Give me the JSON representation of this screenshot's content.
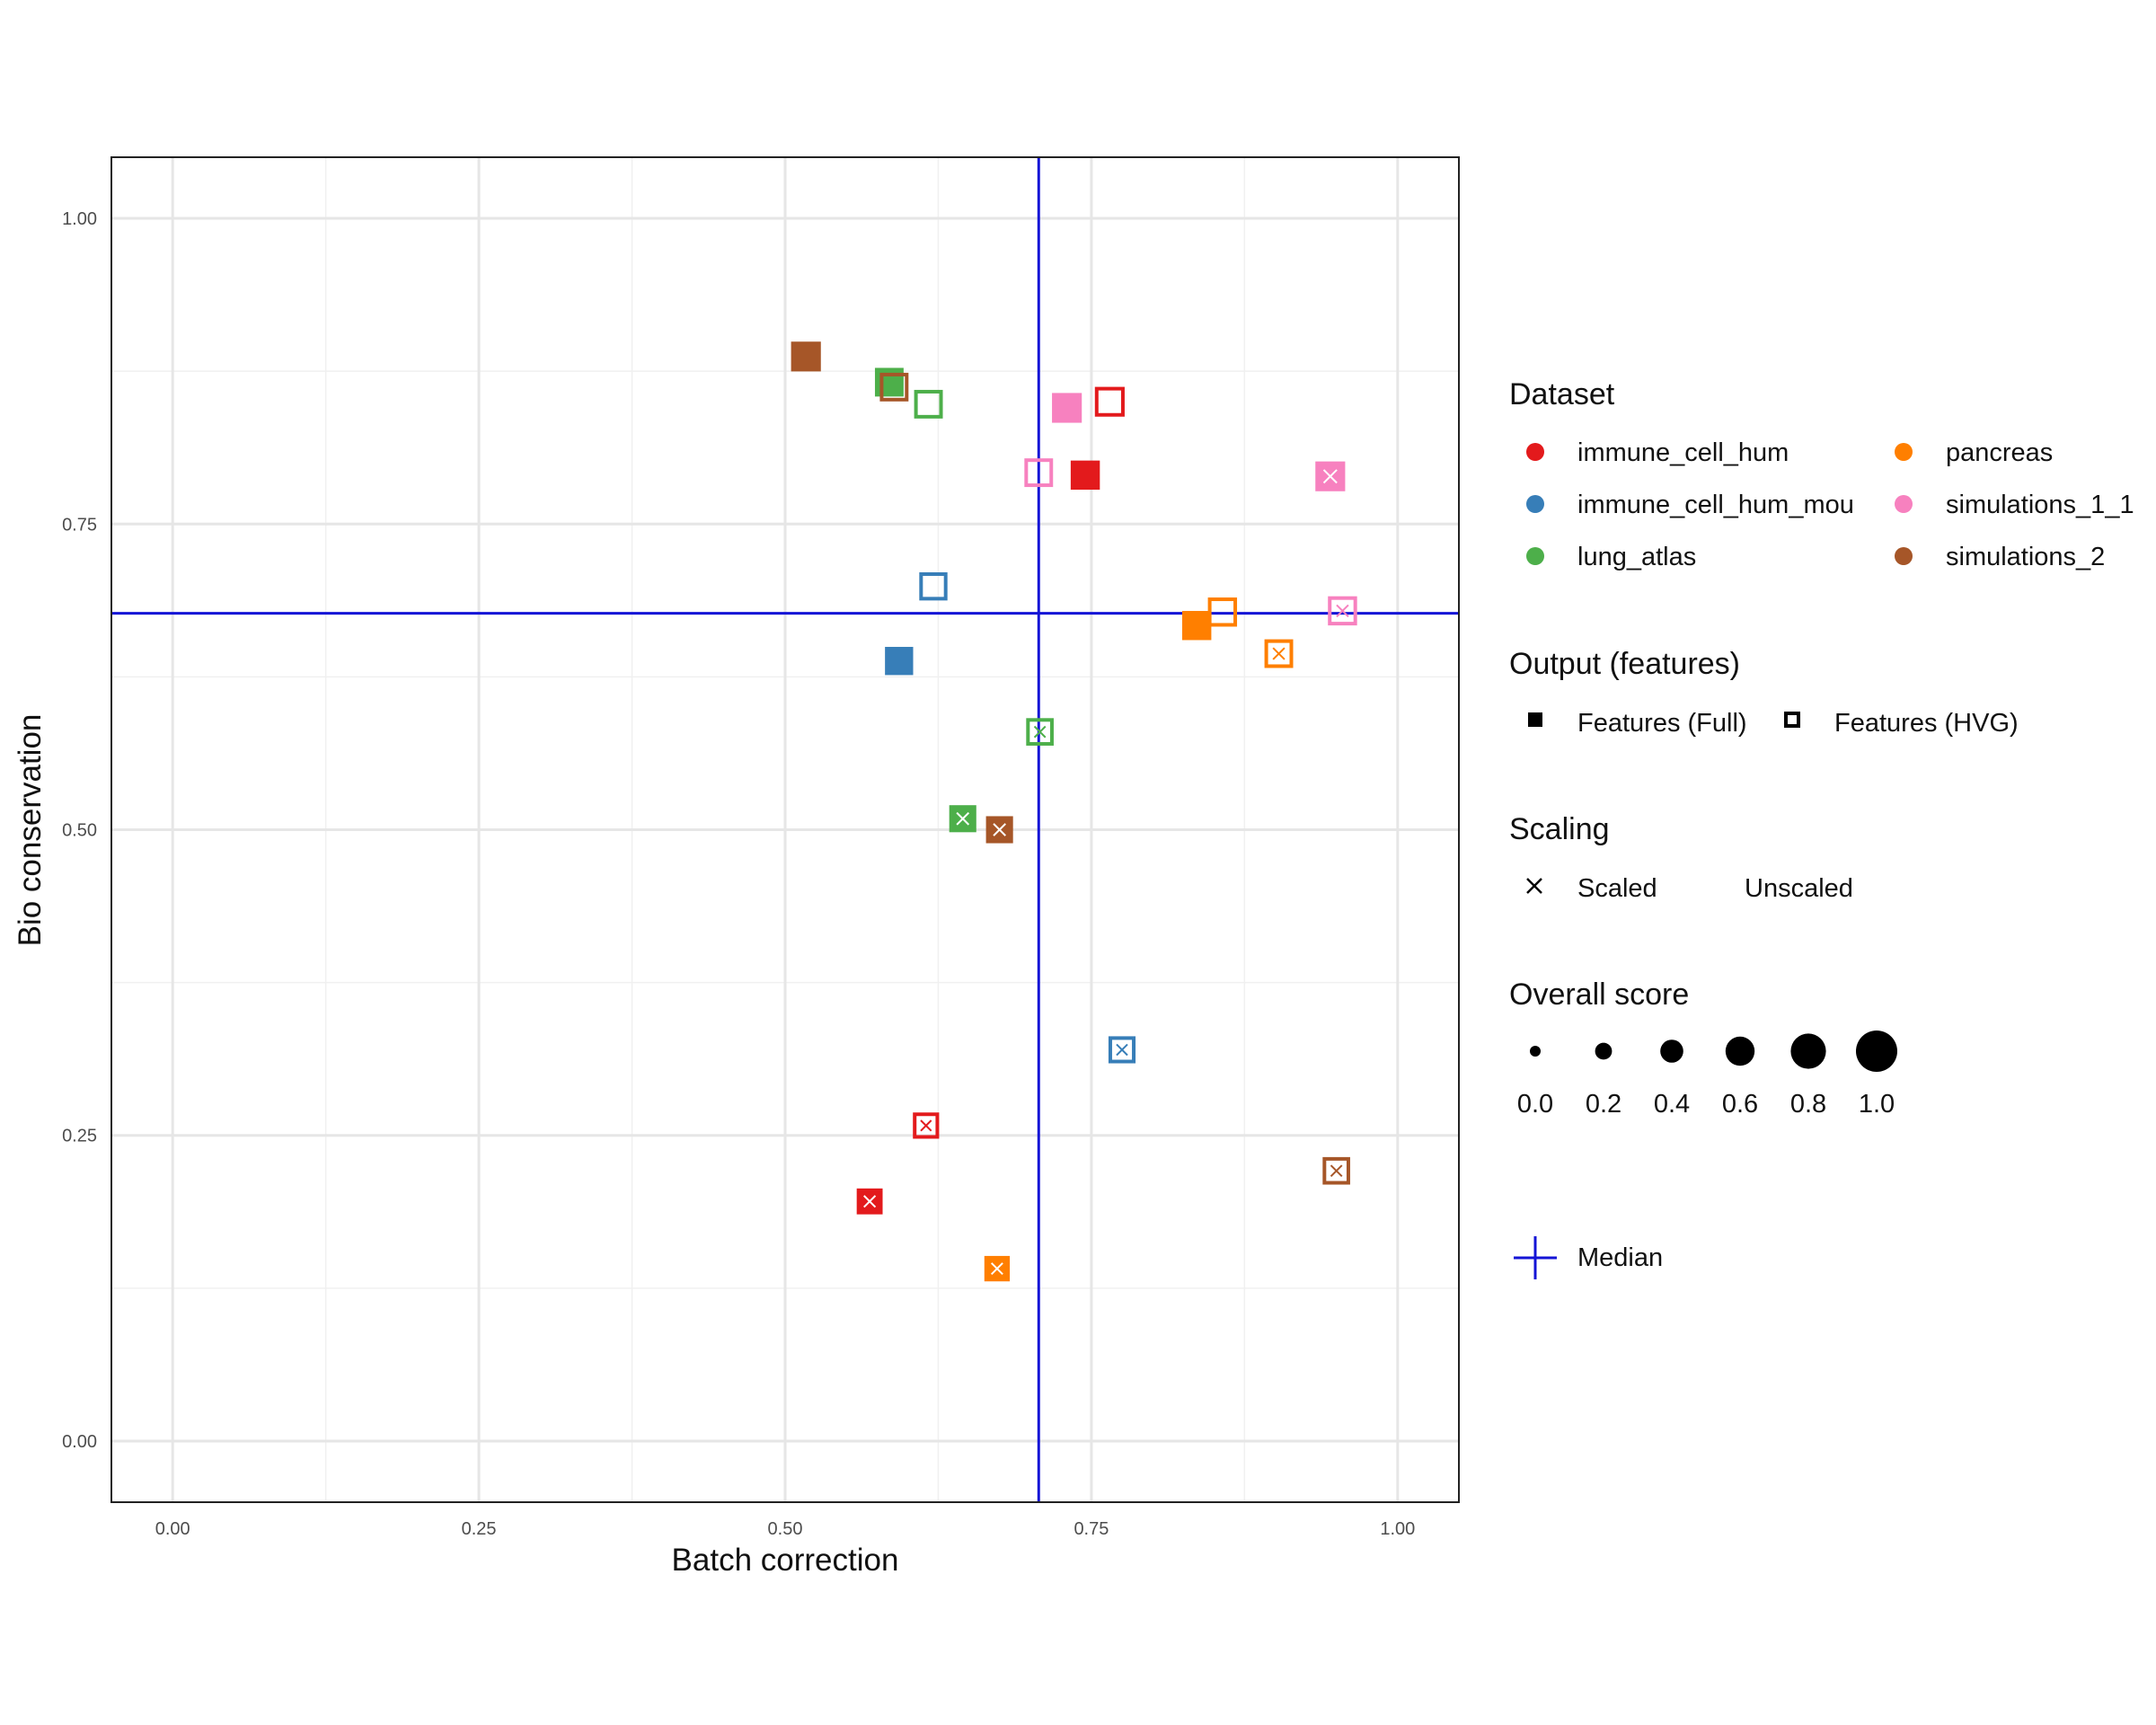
{
  "chart_data": {
    "type": "scatter",
    "xlabel": "Batch correction",
    "ylabel": "Bio conservation",
    "xlim": [
      -0.05,
      1.05
    ],
    "ylim": [
      -0.05,
      1.05
    ],
    "xticks": [
      {
        "v": 0,
        "label": "0.00"
      },
      {
        "v": 0.25,
        "label": "0.25"
      },
      {
        "v": 0.5,
        "label": "0.50"
      },
      {
        "v": 0.75,
        "label": "0.75"
      },
      {
        "v": 1,
        "label": "1.00"
      }
    ],
    "yticks": [
      {
        "v": 0,
        "label": "0.00"
      },
      {
        "v": 0.25,
        "label": "0.25"
      },
      {
        "v": 0.5,
        "label": "0.50"
      },
      {
        "v": 0.75,
        "label": "0.75"
      },
      {
        "v": 1,
        "label": "1.00"
      }
    ],
    "minor_grid": [
      0.125,
      0.375,
      0.625,
      0.875
    ],
    "grid": true,
    "median": {
      "x": 0.707,
      "y": 0.677,
      "color": "#1414d6",
      "label": "Median"
    },
    "datasets": [
      {
        "name": "immune_cell_hum",
        "color": "#e31a1c"
      },
      {
        "name": "immune_cell_hum_mou",
        "color": "#377eb8"
      },
      {
        "name": "lung_atlas",
        "color": "#4daf4a"
      },
      {
        "name": "pancreas",
        "color": "#ff7f00"
      },
      {
        "name": "simulations_1_1",
        "color": "#f781bf"
      },
      {
        "name": "simulations_2",
        "color": "#a65628"
      }
    ],
    "points": [
      {
        "dataset": "simulations_2",
        "x": 0.517,
        "y": 0.887,
        "output": "Full",
        "scaled": false,
        "score": 0.62
      },
      {
        "dataset": "lung_atlas",
        "x": 0.585,
        "y": 0.866,
        "output": "Full",
        "scaled": false,
        "score": 0.55
      },
      {
        "dataset": "simulations_2",
        "x": 0.589,
        "y": 0.862,
        "output": "HVG",
        "scaled": false,
        "score": 0.55
      },
      {
        "dataset": "lung_atlas",
        "x": 0.617,
        "y": 0.848,
        "output": "HVG",
        "scaled": false,
        "score": 0.55
      },
      {
        "dataset": "simulations_1_1",
        "x": 0.73,
        "y": 0.845,
        "output": "Full",
        "scaled": false,
        "score": 0.62
      },
      {
        "dataset": "immune_cell_hum",
        "x": 0.765,
        "y": 0.85,
        "output": "HVG",
        "scaled": false,
        "score": 0.62
      },
      {
        "dataset": "simulations_1_1",
        "x": 0.707,
        "y": 0.792,
        "output": "HVG",
        "scaled": false,
        "score": 0.55
      },
      {
        "dataset": "immune_cell_hum",
        "x": 0.745,
        "y": 0.79,
        "output": "Full",
        "scaled": false,
        "score": 0.58
      },
      {
        "dataset": "simulations_1_1",
        "x": 0.945,
        "y": 0.789,
        "output": "Full",
        "scaled": true,
        "score": 0.62
      },
      {
        "dataset": "immune_cell_hum_mou",
        "x": 0.621,
        "y": 0.699,
        "output": "HVG",
        "scaled": false,
        "score": 0.52
      },
      {
        "dataset": "pancreas",
        "x": 0.857,
        "y": 0.678,
        "output": "HVG",
        "scaled": false,
        "score": 0.58
      },
      {
        "dataset": "simulations_1_1",
        "x": 0.955,
        "y": 0.679,
        "output": "HVG",
        "scaled": true,
        "score": 0.58
      },
      {
        "dataset": "pancreas",
        "x": 0.836,
        "y": 0.667,
        "output": "Full",
        "scaled": false,
        "score": 0.58
      },
      {
        "dataset": "pancreas",
        "x": 0.903,
        "y": 0.644,
        "output": "HVG",
        "scaled": true,
        "score": 0.55
      },
      {
        "dataset": "immune_cell_hum_mou",
        "x": 0.593,
        "y": 0.638,
        "output": "Full",
        "scaled": false,
        "score": 0.52
      },
      {
        "dataset": "lung_atlas",
        "x": 0.708,
        "y": 0.58,
        "output": "HVG",
        "scaled": true,
        "score": 0.48
      },
      {
        "dataset": "lung_atlas",
        "x": 0.645,
        "y": 0.509,
        "output": "Full",
        "scaled": true,
        "score": 0.45
      },
      {
        "dataset": "simulations_2",
        "x": 0.675,
        "y": 0.5,
        "output": "Full",
        "scaled": true,
        "score": 0.45
      },
      {
        "dataset": "immune_cell_hum_mou",
        "x": 0.775,
        "y": 0.32,
        "output": "HVG",
        "scaled": true,
        "score": 0.45
      },
      {
        "dataset": "immune_cell_hum",
        "x": 0.615,
        "y": 0.258,
        "output": "HVG",
        "scaled": true,
        "score": 0.4
      },
      {
        "dataset": "simulations_2",
        "x": 0.95,
        "y": 0.221,
        "output": "HVG",
        "scaled": true,
        "score": 0.48
      },
      {
        "dataset": "immune_cell_hum",
        "x": 0.569,
        "y": 0.196,
        "output": "Full",
        "scaled": true,
        "score": 0.38
      },
      {
        "dataset": "pancreas",
        "x": 0.673,
        "y": 0.141,
        "output": "Full",
        "scaled": true,
        "score": 0.35
      }
    ]
  },
  "legend": {
    "dataset_title": "Dataset",
    "output_title": "Output (features)",
    "output_items": [
      "Features (Full)",
      "Features (HVG)"
    ],
    "scaling_title": "Scaling",
    "scaling_items": [
      "Scaled",
      "Unscaled"
    ],
    "score_title": "Overall score",
    "score_items": [
      {
        "value": 0.0,
        "label": "0.0"
      },
      {
        "value": 0.2,
        "label": "0.2"
      },
      {
        "value": 0.4,
        "label": "0.4"
      },
      {
        "value": 0.6,
        "label": "0.6"
      },
      {
        "value": 0.8,
        "label": "0.8"
      },
      {
        "value": 1.0,
        "label": "1.0"
      }
    ],
    "median_label": "Median"
  }
}
